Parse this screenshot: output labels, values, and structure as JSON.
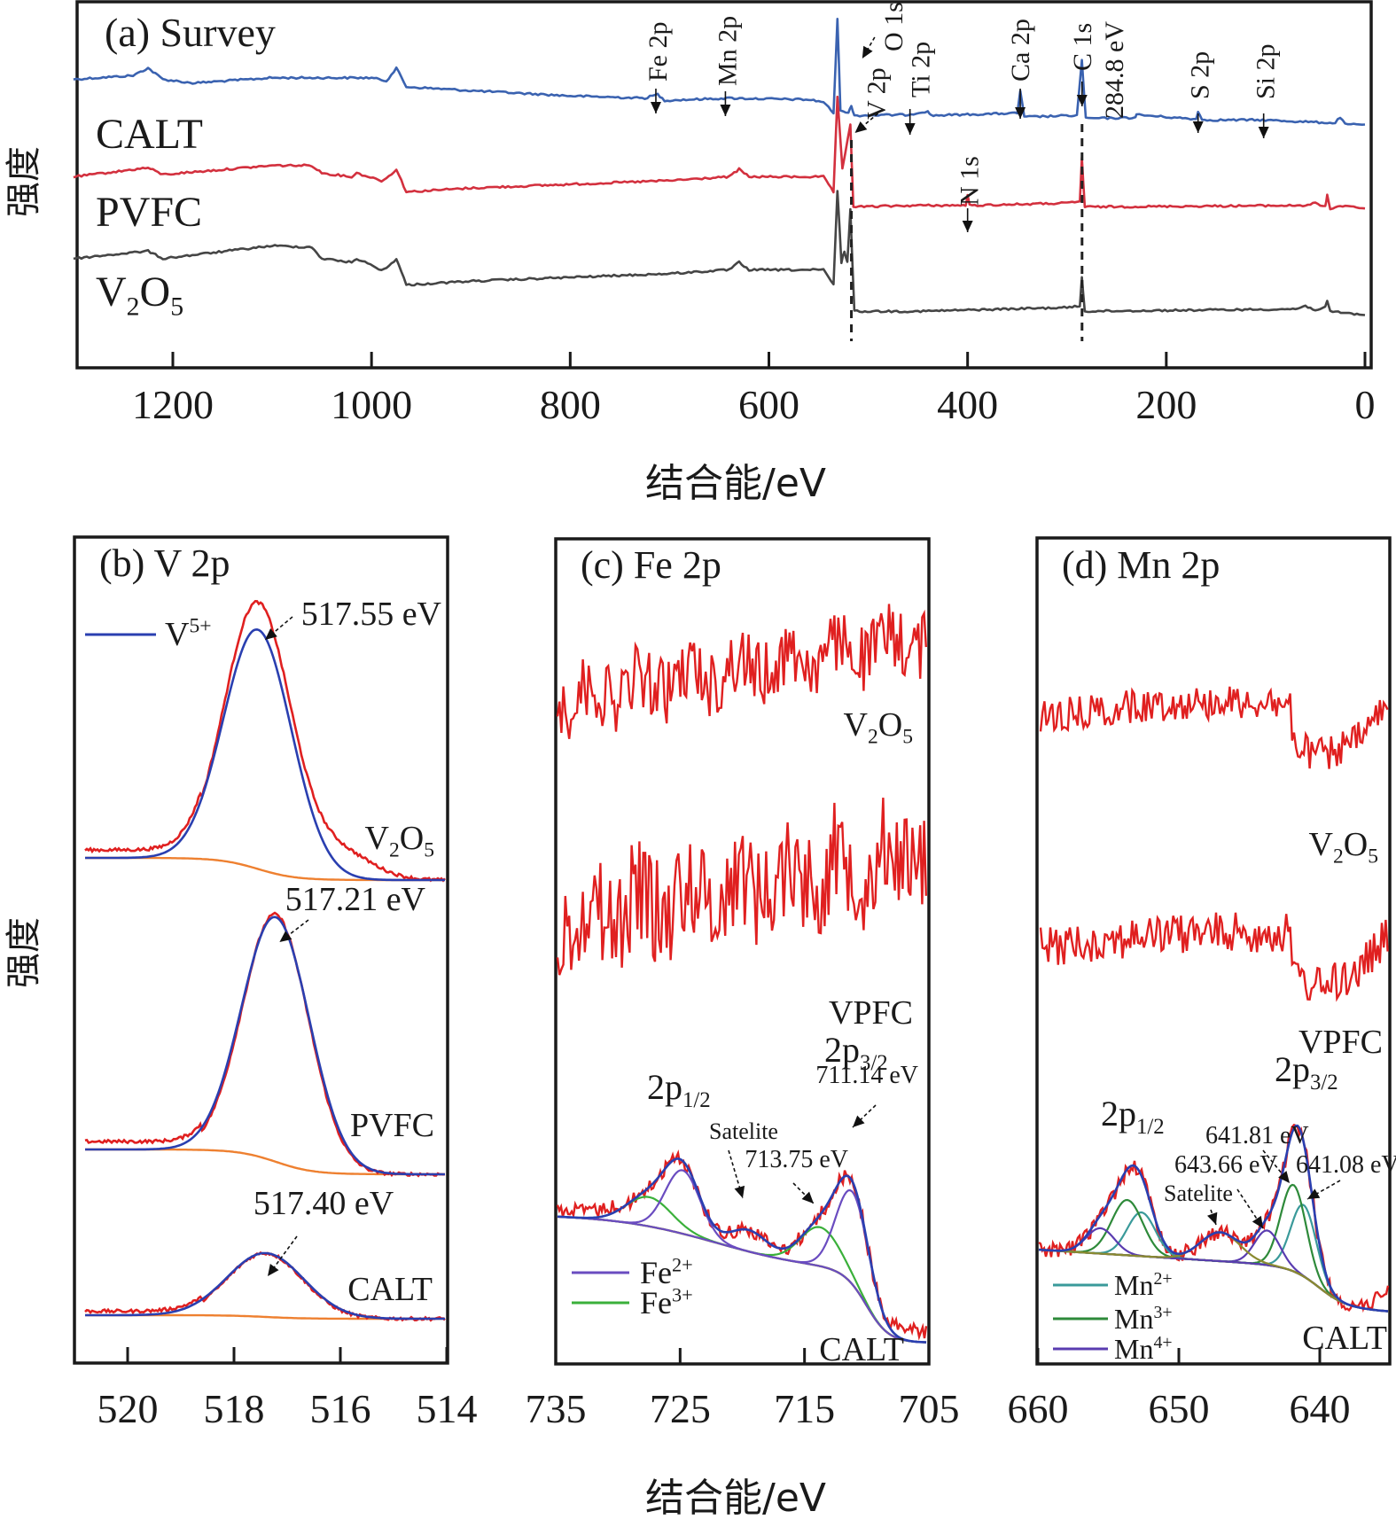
{
  "figure": {
    "ylabel": "强度",
    "xlabel": "结合能/eV"
  },
  "colors": {
    "calt_survey": "#3a62b0",
    "pvfc_survey": "#d3303e",
    "v2o5_survey": "#454545",
    "raw": "#e02020",
    "fit_envelope": "#2a3fb0",
    "background": "#ee8030",
    "v5": "#2a3fb0",
    "fe2": "#6a4cc0",
    "fe3": "#3ab03a",
    "mn2": "#3a9a9a",
    "mn3": "#2e8a3a",
    "mn4": "#5a3cb0",
    "highlight_label": "#d0202a"
  },
  "chart_data": [
    {
      "panel": "a",
      "type": "line",
      "title": "(a) Survey",
      "xlabel": "结合能/eV",
      "ylabel": "强度",
      "xlim": [
        1300,
        0
      ],
      "xticks": [
        1200,
        1000,
        800,
        600,
        400,
        200,
        0
      ],
      "tick_labels": [
        "1200",
        "1000",
        "800",
        "600",
        "400",
        "200",
        "0"
      ],
      "grid": false,
      "series": [
        {
          "name": "CALT",
          "label": "CALT",
          "color_key": "calt_survey",
          "offset": 2.0,
          "points": [
            [
              1300,
              0.3
            ],
            [
              1240,
              0.35
            ],
            [
              1225,
              0.45
            ],
            [
              1210,
              0.3
            ],
            [
              1180,
              0.25
            ],
            [
              1100,
              0.32
            ],
            [
              1000,
              0.32
            ],
            [
              985,
              0.28
            ],
            [
              975,
              0.45
            ],
            [
              965,
              0.2
            ],
            [
              900,
              0.15
            ],
            [
              800,
              0.08
            ],
            [
              725,
              0.05
            ],
            [
              712,
              0.1
            ],
            [
              705,
              0.02
            ],
            [
              640,
              0.05
            ],
            [
              560,
              0.03
            ],
            [
              545,
              0.0
            ],
            [
              535,
              -0.15
            ],
            [
              531,
              1.1
            ],
            [
              528,
              -0.1
            ],
            [
              520,
              -0.15
            ],
            [
              517,
              -0.05
            ],
            [
              514,
              -0.18
            ],
            [
              460,
              -0.17
            ],
            [
              440,
              -0.12
            ],
            [
              437,
              -0.18
            ],
            [
              350,
              -0.15
            ],
            [
              347,
              0.15
            ],
            [
              343,
              -0.2
            ],
            [
              290,
              -0.18
            ],
            [
              285,
              0.55
            ],
            [
              281,
              -0.22
            ],
            [
              232,
              -0.21
            ],
            [
              230,
              -0.17
            ],
            [
              170,
              -0.23
            ],
            [
              168,
              -0.12
            ],
            [
              164,
              -0.24
            ],
            [
              103,
              -0.24
            ],
            [
              30,
              -0.28
            ],
            [
              25,
              -0.2
            ],
            [
              20,
              -0.3
            ],
            [
              0,
              -0.3
            ]
          ]
        },
        {
          "name": "PVFC",
          "label": "PVFC",
          "color_key": "pvfc_survey",
          "offset": 1.0,
          "points": [
            [
              1300,
              0.3
            ],
            [
              1225,
              0.42
            ],
            [
              1210,
              0.33
            ],
            [
              1100,
              0.45
            ],
            [
              1060,
              0.45
            ],
            [
              1050,
              0.35
            ],
            [
              1020,
              0.3
            ],
            [
              1015,
              0.35
            ],
            [
              990,
              0.25
            ],
            [
              985,
              0.28
            ],
            [
              975,
              0.4
            ],
            [
              965,
              0.1
            ],
            [
              900,
              0.15
            ],
            [
              700,
              0.25
            ],
            [
              640,
              0.3
            ],
            [
              630,
              0.4
            ],
            [
              620,
              0.3
            ],
            [
              545,
              0.3
            ],
            [
              535,
              0.1
            ],
            [
              531,
              1.35
            ],
            [
              526,
              0.4
            ],
            [
              518,
              1.0
            ],
            [
              515,
              -0.1
            ],
            [
              450,
              -0.08
            ],
            [
              402,
              -0.08
            ],
            [
              400,
              0.05
            ],
            [
              398,
              -0.08
            ],
            [
              300,
              -0.05
            ],
            [
              287,
              -0.03
            ],
            [
              285,
              0.55
            ],
            [
              282,
              -0.1
            ],
            [
              60,
              -0.08
            ],
            [
              50,
              -0.05
            ],
            [
              40,
              -0.1
            ],
            [
              38,
              0.05
            ],
            [
              35,
              -0.12
            ],
            [
              20,
              -0.08
            ],
            [
              0,
              -0.12
            ]
          ]
        },
        {
          "name": "V2O5",
          "label": "V2O5",
          "color_key": "v2o5_survey",
          "offset": 0.0,
          "points": [
            [
              1300,
              0.45
            ],
            [
              1225,
              0.55
            ],
            [
              1210,
              0.45
            ],
            [
              1100,
              0.62
            ],
            [
              1060,
              0.6
            ],
            [
              1050,
              0.45
            ],
            [
              1020,
              0.4
            ],
            [
              1015,
              0.45
            ],
            [
              990,
              0.3
            ],
            [
              985,
              0.32
            ],
            [
              975,
              0.45
            ],
            [
              965,
              0.1
            ],
            [
              900,
              0.15
            ],
            [
              700,
              0.25
            ],
            [
              640,
              0.3
            ],
            [
              630,
              0.4
            ],
            [
              620,
              0.3
            ],
            [
              545,
              0.3
            ],
            [
              535,
              0.1
            ],
            [
              531,
              1.35
            ],
            [
              527,
              0.4
            ],
            [
              524,
              0.55
            ],
            [
              521,
              0.4
            ],
            [
              518,
              1.1
            ],
            [
              514,
              -0.25
            ],
            [
              450,
              -0.25
            ],
            [
              300,
              -0.2
            ],
            [
              287,
              -0.18
            ],
            [
              285,
              0.2
            ],
            [
              282,
              -0.25
            ],
            [
              70,
              -0.22
            ],
            [
              60,
              -0.18
            ],
            [
              50,
              -0.23
            ],
            [
              40,
              -0.2
            ],
            [
              38,
              -0.12
            ],
            [
              35,
              -0.25
            ],
            [
              0,
              -0.3
            ]
          ]
        }
      ],
      "annotations": [
        {
          "text": "Fe 2p",
          "x": 712
        },
        {
          "text": "Mn 2p",
          "x": 642
        },
        {
          "text": "O 1s",
          "x": 531
        },
        {
          "text": "V 2p",
          "x": 517
        },
        {
          "text": "Ti 2p",
          "x": 458
        },
        {
          "text": "N 1s",
          "x": 400
        },
        {
          "text": "Ca 2p",
          "x": 347
        },
        {
          "text": "C 1s",
          "x": 284.8
        },
        {
          "text": "284.8 eV",
          "x": 284.8
        },
        {
          "text": "S 2p",
          "x": 168
        },
        {
          "text": "Si 2p",
          "x": 102
        }
      ],
      "reference_lines_eV": [
        517,
        284.8
      ]
    },
    {
      "panel": "b",
      "type": "line",
      "title": "(b) V 2p",
      "xlim": [
        521.33,
        514
      ],
      "xticks": [
        520,
        518,
        516,
        514
      ],
      "tick_labels": [
        "520",
        "518",
        "516",
        "514"
      ],
      "legend": [
        {
          "label": "V",
          "sup": "5+",
          "color_key": "v5"
        }
      ],
      "legend_position": "top-left",
      "samples": [
        {
          "name": "V2O5",
          "label_main": "V",
          "peak_eV": 517.55,
          "peak_label": "517.55 eV",
          "amplitude": 1.0,
          "fit_amp": 0.9,
          "sigma": 0.62,
          "base_hi": 0.05
        },
        {
          "name": "PVFC",
          "label_main": "PVFC",
          "peak_eV": 517.21,
          "peak_label": "517.21 eV",
          "amplitude": 0.93,
          "fit_amp": 0.92,
          "sigma": 0.62,
          "base_hi": 0.05
        },
        {
          "name": "CALT",
          "label_main": "CALT",
          "peak_eV": 517.4,
          "peak_label": "517.40 eV",
          "amplitude": 0.24,
          "fit_amp": 0.24,
          "sigma": 0.7,
          "base_hi": 0.01
        }
      ]
    },
    {
      "panel": "c",
      "type": "line",
      "title": "(c) Fe 2p",
      "xlim": [
        735,
        705
      ],
      "xticks": [
        735,
        725,
        715,
        705
      ],
      "tick_labels": [
        "735",
        "725",
        "715",
        "705"
      ],
      "legend": [
        {
          "label": "Fe",
          "sup": "2+",
          "color_key": "fe2"
        },
        {
          "label": "Fe",
          "sup": "3+",
          "color_key": "fe3"
        }
      ],
      "legend_position": "bottom-left",
      "samples": [
        {
          "name": "V2O5",
          "label": "V2O5",
          "kind": "noise"
        },
        {
          "name": "VPFC",
          "label": "VPFC",
          "kind": "noise"
        },
        {
          "name": "CALT",
          "label": "CALT",
          "kind": "fit"
        }
      ],
      "peak_labels": [
        {
          "text": "2p",
          "sub": "1/2",
          "x": 725
        },
        {
          "text": "2p",
          "sub": "3/2",
          "x": 711
        },
        {
          "text": "711.14 eV",
          "x": 711.14
        },
        {
          "text": "713.75 eV",
          "x": 713.75
        },
        {
          "text": "Satelite",
          "x": 719.5
        }
      ],
      "components": [
        {
          "species": "Fe2+",
          "center": 711.14,
          "amp": 0.95,
          "sigma": 1.3
        },
        {
          "species": "Fe2+",
          "center": 724.8,
          "amp": 0.65,
          "sigma": 1.4
        },
        {
          "species": "Fe3+",
          "center": 713.75,
          "amp": 0.4,
          "sigma": 1.6
        },
        {
          "species": "Fe3+",
          "center": 727.5,
          "amp": 0.3,
          "sigma": 1.8
        },
        {
          "species": "satellite",
          "center": 719.5,
          "amp": 0.22,
          "sigma": 1.5
        }
      ]
    },
    {
      "panel": "d",
      "type": "line",
      "title": "(d) Mn 2p",
      "xlim": [
        660,
        635
      ],
      "xticks": [
        660,
        650,
        640
      ],
      "tick_labels": [
        "660",
        "650",
        "640"
      ],
      "legend": [
        {
          "label": "Mn",
          "sup": "2+",
          "color_key": "mn2"
        },
        {
          "label": "Mn",
          "sup": "3+",
          "color_key": "mn3"
        },
        {
          "label": "Mn",
          "sup": "4+",
          "color_key": "mn4"
        }
      ],
      "legend_position": "bottom-left",
      "samples": [
        {
          "name": "V2O5",
          "label": "V2O5",
          "kind": "noise"
        },
        {
          "name": "VPFC",
          "label": "VPFC",
          "kind": "noise"
        },
        {
          "name": "CALT",
          "label": "CALT",
          "kind": "fit"
        }
      ],
      "peak_labels": [
        {
          "text": "2p",
          "sub": "1/2",
          "x": 653.5
        },
        {
          "text": "2p",
          "sub": "3/2",
          "x": 641.5
        },
        {
          "text": "641.81 eV",
          "x": 641.81
        },
        {
          "text": "643.66 eV",
          "x": 643.66
        },
        {
          "text": "641.08 eV",
          "x": 641.08
        },
        {
          "text": "Satelite",
          "x": 647
        }
      ],
      "components": [
        {
          "species": "Mn2+",
          "center": 641.08,
          "amp": 0.62,
          "sigma": 0.9
        },
        {
          "species": "Mn3+",
          "center": 641.81,
          "amp": 0.75,
          "sigma": 0.9
        },
        {
          "species": "Mn4+",
          "center": 643.66,
          "amp": 0.3,
          "sigma": 0.9
        },
        {
          "species": "Mn2+",
          "center": 652.6,
          "amp": 0.38,
          "sigma": 1.0
        },
        {
          "species": "Mn3+",
          "center": 653.6,
          "amp": 0.48,
          "sigma": 1.1
        },
        {
          "species": "Mn4+",
          "center": 655.5,
          "amp": 0.22,
          "sigma": 1.0
        },
        {
          "species": "satellite",
          "center": 647.0,
          "amp": 0.25,
          "sigma": 1.4
        }
      ]
    }
  ]
}
